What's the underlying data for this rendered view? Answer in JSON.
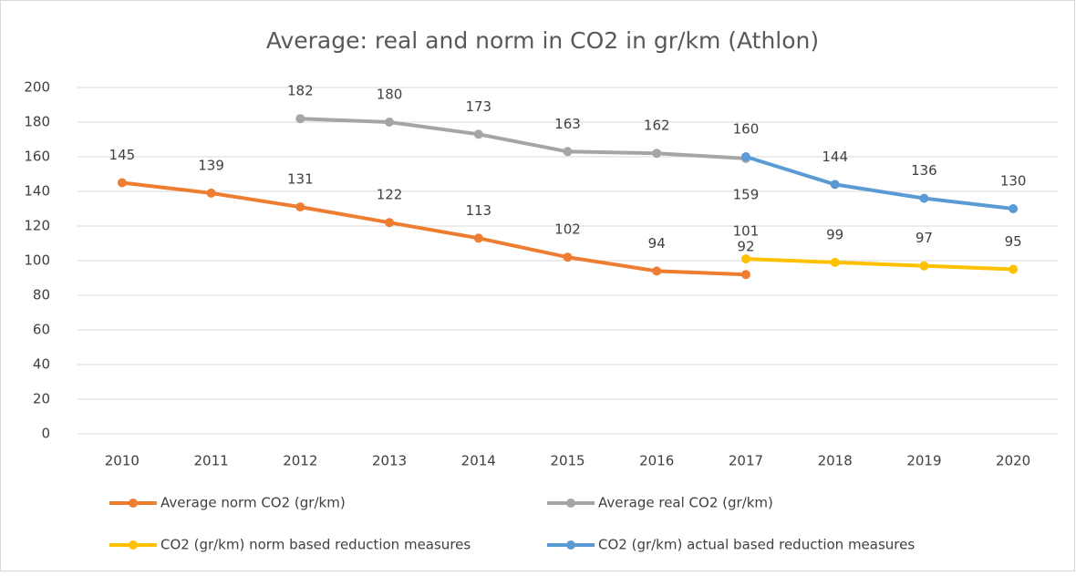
{
  "chart_data": {
    "type": "line",
    "title": "Average: real and norm in CO2 in gr/km (Athlon)",
    "categories": [
      "2010",
      "2011",
      "2012",
      "2013",
      "2014",
      "2015",
      "2016",
      "2017",
      "2018",
      "2019",
      "2020"
    ],
    "series": [
      {
        "name": "Average norm CO2 (gr/km)",
        "color": "#ed7d31",
        "values": [
          145,
          139,
          131,
          122,
          113,
          102,
          94,
          92,
          null,
          null,
          null
        ]
      },
      {
        "name": "Average real CO2 (gr/km)",
        "color": "#a5a5a5",
        "values": [
          null,
          null,
          182,
          180,
          173,
          163,
          162,
          159,
          null,
          null,
          null
        ]
      },
      {
        "name": "CO2 (gr/km) norm based reduction measures",
        "color": "#ffc000",
        "values": [
          null,
          null,
          null,
          null,
          null,
          null,
          null,
          101,
          99,
          97,
          95
        ]
      },
      {
        "name": "CO2 (gr/km) actual based reduction measures",
        "color": "#5b9bd5",
        "values": [
          null,
          null,
          null,
          null,
          null,
          null,
          null,
          160,
          144,
          136,
          130
        ]
      }
    ],
    "ylim": [
      0,
      200
    ],
    "yticks": [
      0,
      20,
      40,
      60,
      80,
      100,
      120,
      140,
      160,
      180,
      200
    ],
    "grid": true
  }
}
